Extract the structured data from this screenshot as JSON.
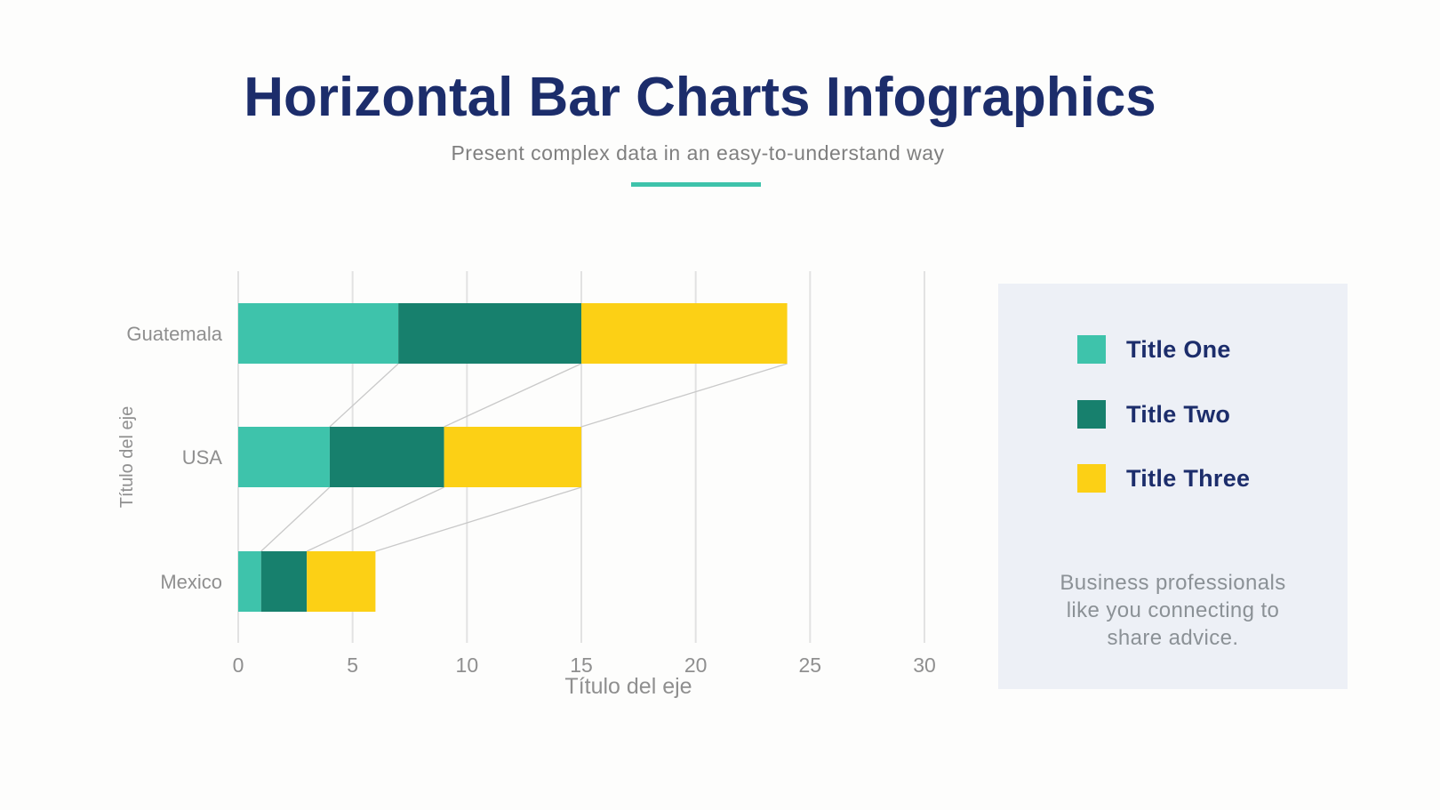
{
  "header": {
    "title": "Horizontal Bar Charts Infographics",
    "subtitle": "Present complex data in an easy-to-understand way"
  },
  "chart_data": {
    "type": "bar",
    "orientation": "horizontal",
    "stacked": true,
    "categories": [
      "Guatemala",
      "USA",
      "Mexico"
    ],
    "series": [
      {
        "name": "Title One",
        "color": "#3ec3ab",
        "values": [
          7,
          4,
          1
        ]
      },
      {
        "name": "Title Two",
        "color": "#17806d",
        "values": [
          8,
          5,
          2
        ]
      },
      {
        "name": "Title Three",
        "color": "#fcd015",
        "values": [
          9,
          6,
          3
        ]
      }
    ],
    "totals": [
      24,
      15,
      6
    ],
    "xlabel": "Título del eje",
    "ylabel": "Título del eje",
    "xlim": [
      0,
      30
    ],
    "xticks": [
      0,
      5,
      10,
      15,
      20,
      25,
      30
    ],
    "grid": true,
    "legend_position": "right-panel"
  },
  "legend": {
    "items": [
      {
        "label": "Title One",
        "color": "#3ec3ab"
      },
      {
        "label": "Title Two",
        "color": "#17806d"
      },
      {
        "label": "Title Three",
        "color": "#fcd015"
      }
    ],
    "note_lines": [
      "Business professionals",
      "like you connecting to",
      "share advice."
    ]
  },
  "colors": {
    "accent_navy": "#1c2d6b",
    "accent_teal": "#3ec3ab",
    "panel_background": "#edf0f6",
    "gridline": "#e2e2e2",
    "connector": "#c9c9c9",
    "axis_text": "#8f8f8f"
  }
}
